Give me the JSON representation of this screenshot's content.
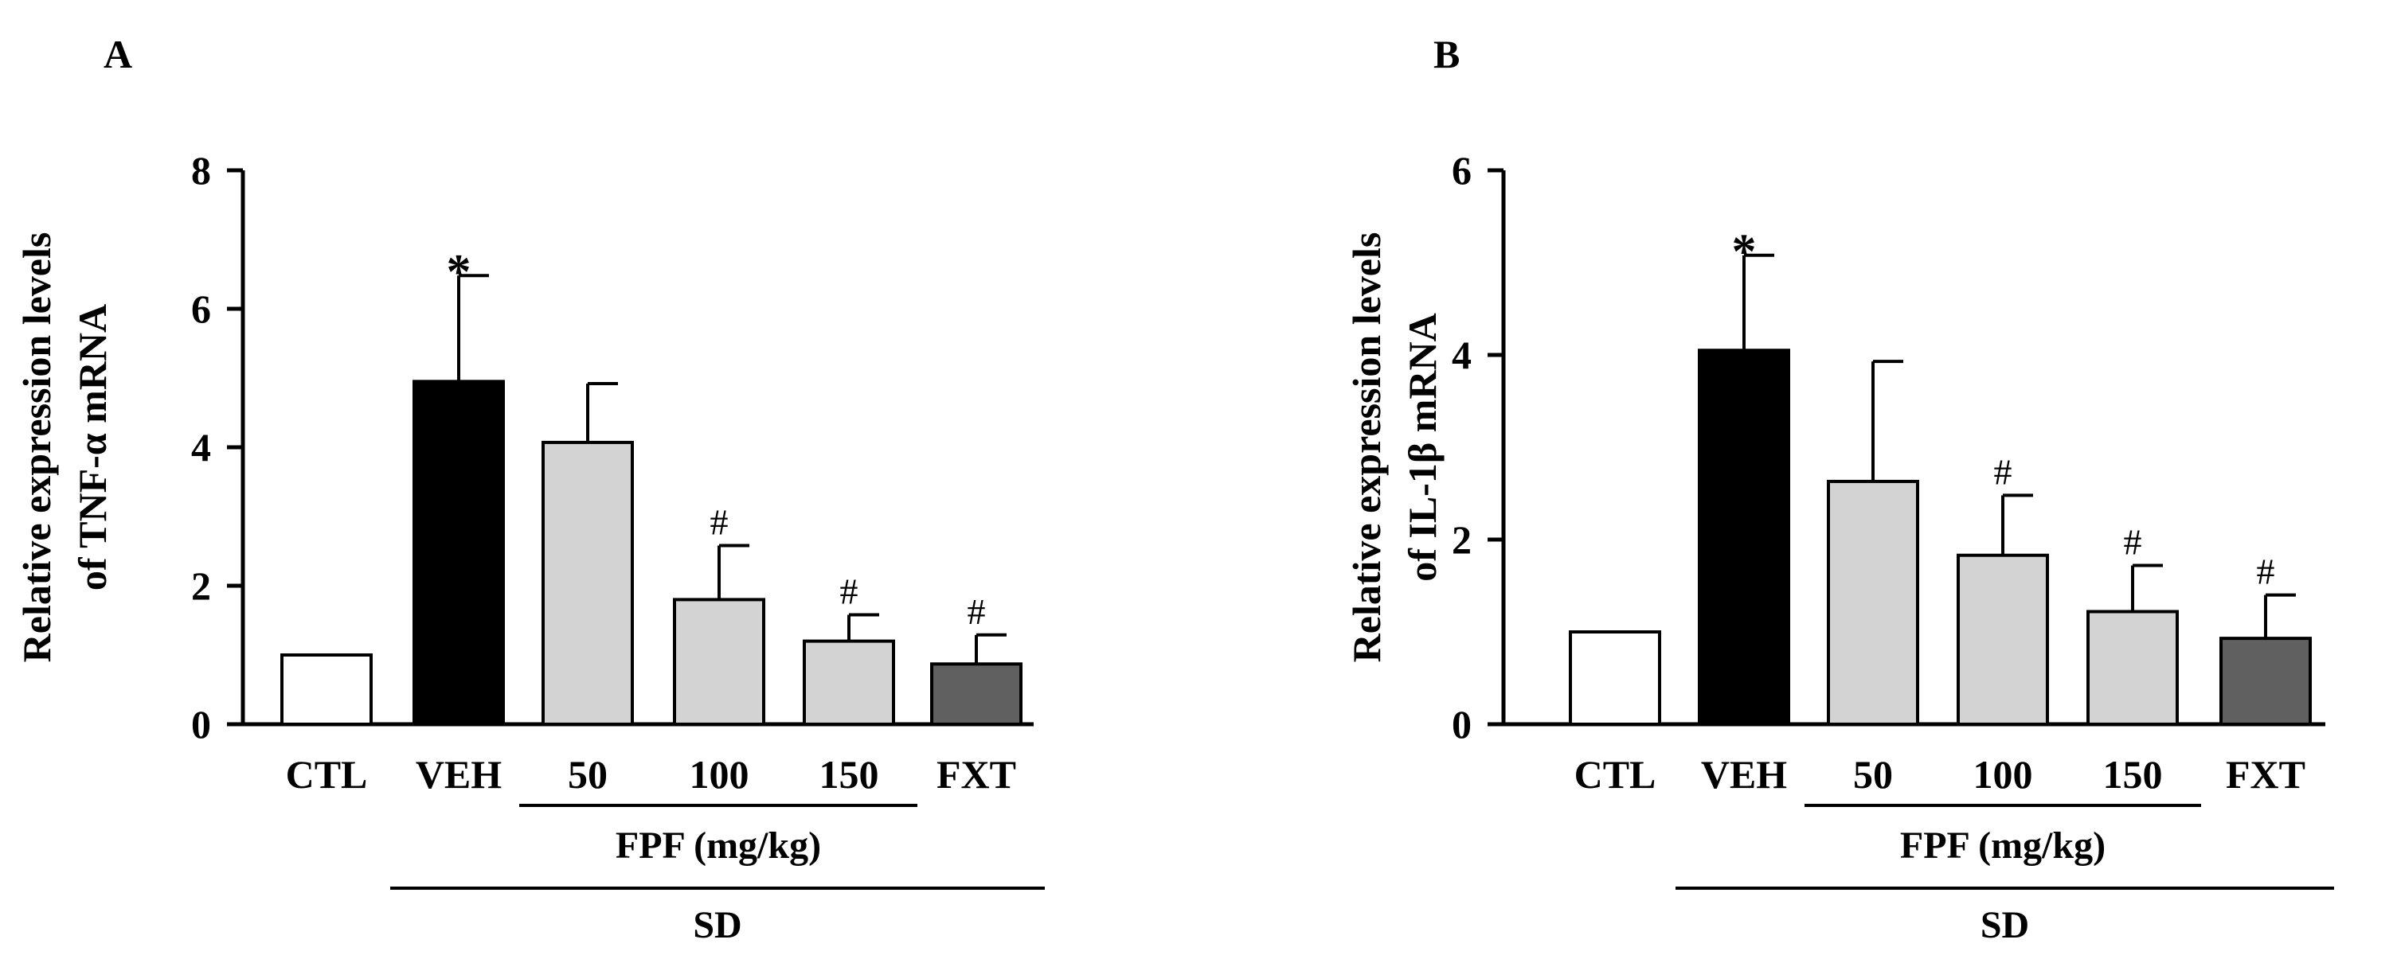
{
  "chart_data": [
    {
      "panel": "A",
      "type": "bar",
      "ylabel_lines": [
        "Relative expression levels",
        "of TNF-α mRNA"
      ],
      "ylim": [
        0,
        8
      ],
      "yticks": [
        0,
        2,
        4,
        6,
        8
      ],
      "categories": [
        "CTL",
        "VEH",
        "50",
        "100",
        "150",
        "FXT"
      ],
      "values": [
        1.0,
        4.95,
        4.07,
        1.8,
        1.2,
        0.87
      ],
      "errors": [
        0.0,
        1.53,
        0.85,
        0.78,
        0.38,
        0.42
      ],
      "bar_colors": [
        "#ffffff",
        "#000000",
        "#d3d3d3",
        "#d3d3d3",
        "#d3d3d3",
        "#606060"
      ],
      "significance": [
        "",
        "*",
        "",
        "#",
        "#",
        "#"
      ],
      "group_lines": [
        {
          "label": "FPF (mg/kg)",
          "from": 2,
          "to": 4
        },
        {
          "label": "SD",
          "from": 1,
          "to": 5
        }
      ]
    },
    {
      "panel": "B",
      "type": "bar",
      "ylabel_lines": [
        "Relative expression levels",
        "of IL-1β mRNA"
      ],
      "ylim": [
        0,
        6
      ],
      "yticks": [
        0,
        2,
        4,
        6
      ],
      "categories": [
        "CTL",
        "VEH",
        "50",
        "100",
        "150",
        "FXT"
      ],
      "values": [
        1.0,
        4.05,
        2.63,
        1.83,
        1.22,
        0.93
      ],
      "errors": [
        0.0,
        1.03,
        1.3,
        0.65,
        0.5,
        0.47
      ],
      "bar_colors": [
        "#ffffff",
        "#000000",
        "#d3d3d3",
        "#d3d3d3",
        "#d3d3d3",
        "#606060"
      ],
      "significance": [
        "",
        "*",
        "",
        "#",
        "#",
        "#"
      ],
      "group_lines": [
        {
          "label": "FPF (mg/kg)",
          "from": 2,
          "to": 4
        },
        {
          "label": "SD",
          "from": 1,
          "to": 5
        }
      ]
    }
  ]
}
